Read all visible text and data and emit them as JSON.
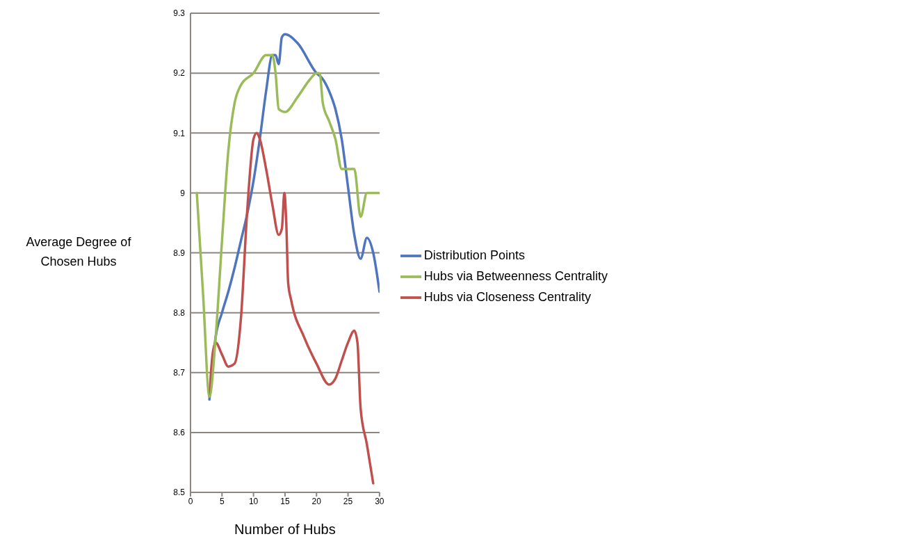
{
  "chart_data": {
    "type": "line",
    "xlabel": "Number of Hubs",
    "ylabel": "Average Degree of Chosen Hubs",
    "xlim": [
      0,
      30
    ],
    "xticks": [
      0,
      5,
      10,
      15,
      20,
      25,
      30
    ],
    "ylim": [
      8.5,
      9.3
    ],
    "yticks": [
      8.5,
      8.6,
      8.7,
      8.8,
      8.9,
      9,
      9.1,
      9.2,
      9.3
    ],
    "grid": "y",
    "legend": "right",
    "marker": "none",
    "line_style": "solid",
    "series": [
      {
        "name": "Distribution Points",
        "color": "#4f75bd",
        "x": [
          3,
          4,
          5,
          6,
          7,
          8,
          9,
          10,
          11,
          12,
          13,
          13.5,
          14,
          14.5,
          15,
          17,
          20,
          21,
          22,
          23,
          24,
          25,
          26,
          27,
          28,
          29,
          30
        ],
        "values": [
          8.655,
          8.76,
          8.8,
          8.835,
          8.875,
          8.92,
          8.965,
          9.02,
          9.09,
          9.17,
          9.23,
          9.23,
          9.215,
          9.26,
          9.265,
          9.25,
          9.2,
          9.19,
          9.17,
          9.14,
          9.09,
          9.01,
          8.93,
          8.89,
          8.925,
          8.9,
          8.835
        ]
      },
      {
        "name": "Hubs via  Closeness Centrality",
        "color": "#c0504d",
        "x": [
          3,
          3.5,
          4,
          5,
          6,
          7,
          8,
          9,
          10,
          10.5,
          11,
          12,
          13,
          14,
          14.5,
          14.9,
          15.2,
          15.5,
          16,
          18,
          20,
          22,
          23,
          24,
          25,
          26,
          26.5,
          27,
          28,
          29
        ],
        "values": [
          8.66,
          8.73,
          8.75,
          8.73,
          8.71,
          8.715,
          8.79,
          8.97,
          9.09,
          9.1,
          9.09,
          9.04,
          8.98,
          8.93,
          8.94,
          9,
          8.95,
          8.85,
          8.82,
          8.76,
          8.715,
          8.68,
          8.69,
          8.72,
          8.75,
          8.77,
          8.75,
          8.64,
          8.58,
          8.515
        ]
      },
      {
        "name": "Hubs via  Betweenness Centrality",
        "color": "#9bbb59",
        "x": [
          1,
          2,
          3,
          4,
          5,
          6,
          7,
          8,
          10,
          12,
          13,
          13.5,
          14,
          15,
          17,
          19,
          20,
          20.5,
          21,
          22,
          23,
          24,
          25,
          26,
          27,
          28,
          29,
          30
        ],
        "values": [
          9,
          8.83,
          8.66,
          8.76,
          8.92,
          9.07,
          9.15,
          9.18,
          9.2,
          9.23,
          9.23,
          9.2,
          9.14,
          9.135,
          9.16,
          9.19,
          9.2,
          9.2,
          9.15,
          9.12,
          9.09,
          9.04,
          9.04,
          9.04,
          8.96,
          9,
          9,
          9
        ]
      }
    ]
  }
}
